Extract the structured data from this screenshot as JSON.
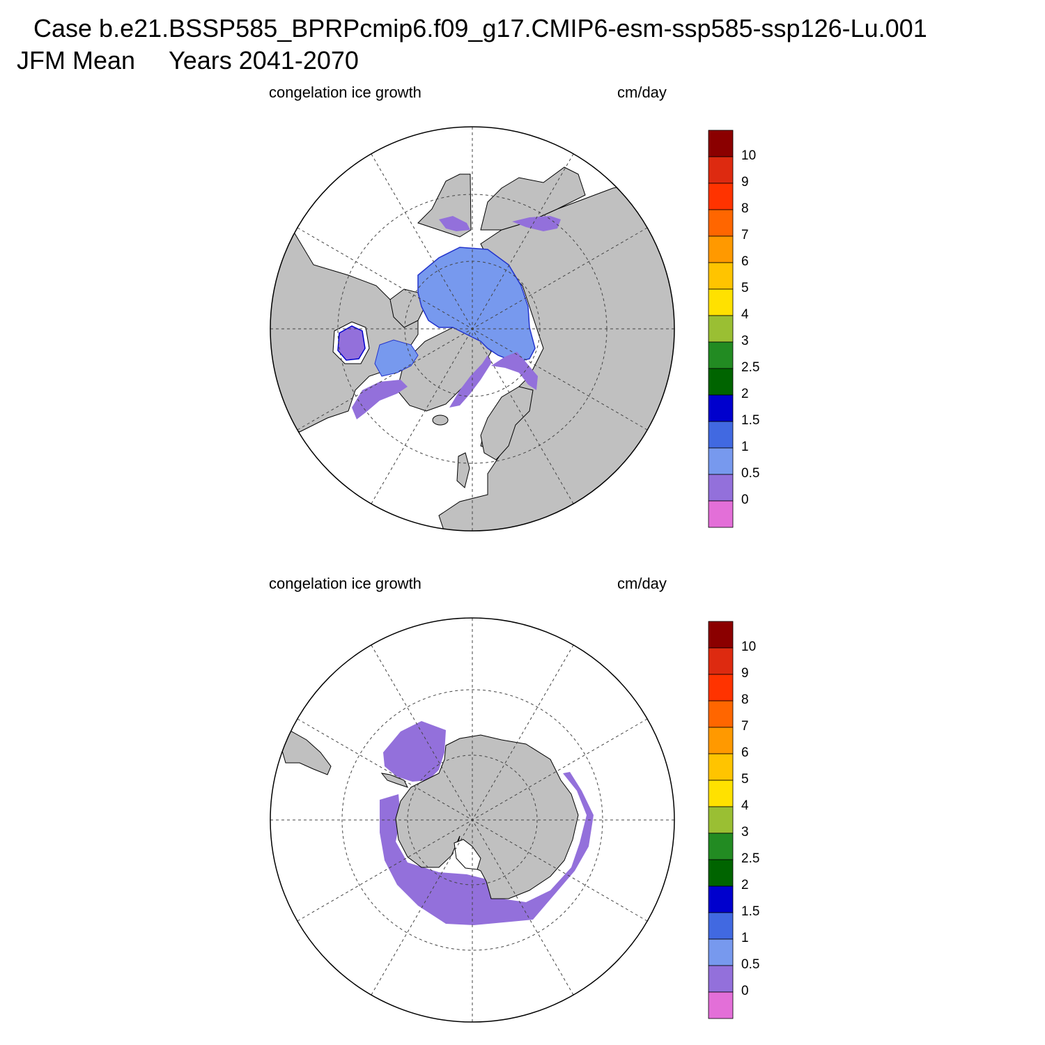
{
  "header": {
    "case_line": "Case b.e21.BSSP585_BPRPcmip6.f09_g17.CMIP6-esm-ssp585-ssp126-Lu.001",
    "season": "JFM Mean",
    "years": "Years 2041-2070"
  },
  "panels": [
    {
      "hemisphere": "north",
      "variable_label": "congelation ice growth",
      "units": "cm/day"
    },
    {
      "hemisphere": "south",
      "variable_label": "congelation ice growth",
      "units": "cm/day"
    }
  ],
  "colorbar": {
    "labels": [
      "10",
      "9",
      "8",
      "7",
      "6",
      "5",
      "4",
      "3",
      "2.5",
      "2",
      "1.5",
      "1",
      "0.5",
      "0"
    ],
    "colors_top_to_bottom": [
      "#8b0000",
      "#dd2a10",
      "#ff3300",
      "#ff6600",
      "#ff9900",
      "#ffc400",
      "#ffe100",
      "#9abf33",
      "#228b22",
      "#006400",
      "#0000cd",
      "#4169e1",
      "#7799ee",
      "#9370db",
      "#e36fd8"
    ]
  },
  "map_style": {
    "land_color": "#c0c0c0",
    "ocean_color": "#ffffff",
    "grid": "dashed"
  }
}
